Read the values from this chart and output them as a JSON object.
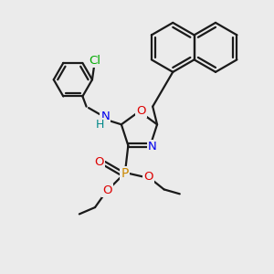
{
  "bg_color": "#ebebeb",
  "line_color": "#1a1a1a",
  "line_width": 1.6,
  "colors": {
    "Cl": "#00aa00",
    "N": "#0000ee",
    "H": "#008888",
    "O": "#dd0000",
    "P": "#cc8800"
  }
}
